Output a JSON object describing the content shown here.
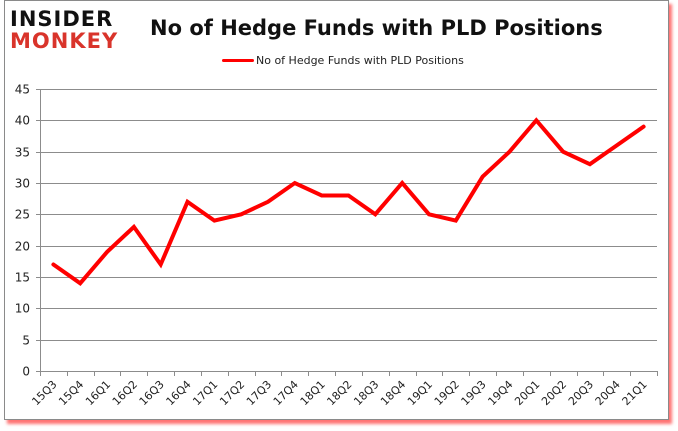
{
  "brand": {
    "logo_line1": "INSIDER",
    "logo_line2": "MONKEY",
    "logo_color_dark": "#111111",
    "logo_color_accent": "#d9342b"
  },
  "chart_data": {
    "type": "line",
    "title": "No of Hedge Funds with PLD Positions",
    "xlabel": "",
    "ylabel": "",
    "ylim": [
      0,
      45
    ],
    "yticks": [
      0,
      5,
      10,
      15,
      20,
      25,
      30,
      35,
      40,
      45
    ],
    "grid": true,
    "legend_position": "top",
    "categories": [
      "15Q3",
      "15Q4",
      "16Q1",
      "16Q2",
      "16Q3",
      "16Q4",
      "17Q1",
      "17Q2",
      "17Q3",
      "17Q4",
      "18Q1",
      "18Q2",
      "18Q3",
      "18Q4",
      "19Q1",
      "19Q2",
      "19Q3",
      "19Q4",
      "20Q1",
      "20Q2",
      "20Q3",
      "20Q4",
      "21Q1"
    ],
    "series": [
      {
        "name": "No of Hedge Funds with PLD Positions",
        "color": "#ff0000",
        "values": [
          17,
          14,
          19,
          23,
          17,
          27,
          24,
          25,
          27,
          30,
          28,
          28,
          25,
          30,
          25,
          24,
          31,
          35,
          40,
          35,
          33,
          36,
          39
        ]
      }
    ]
  }
}
